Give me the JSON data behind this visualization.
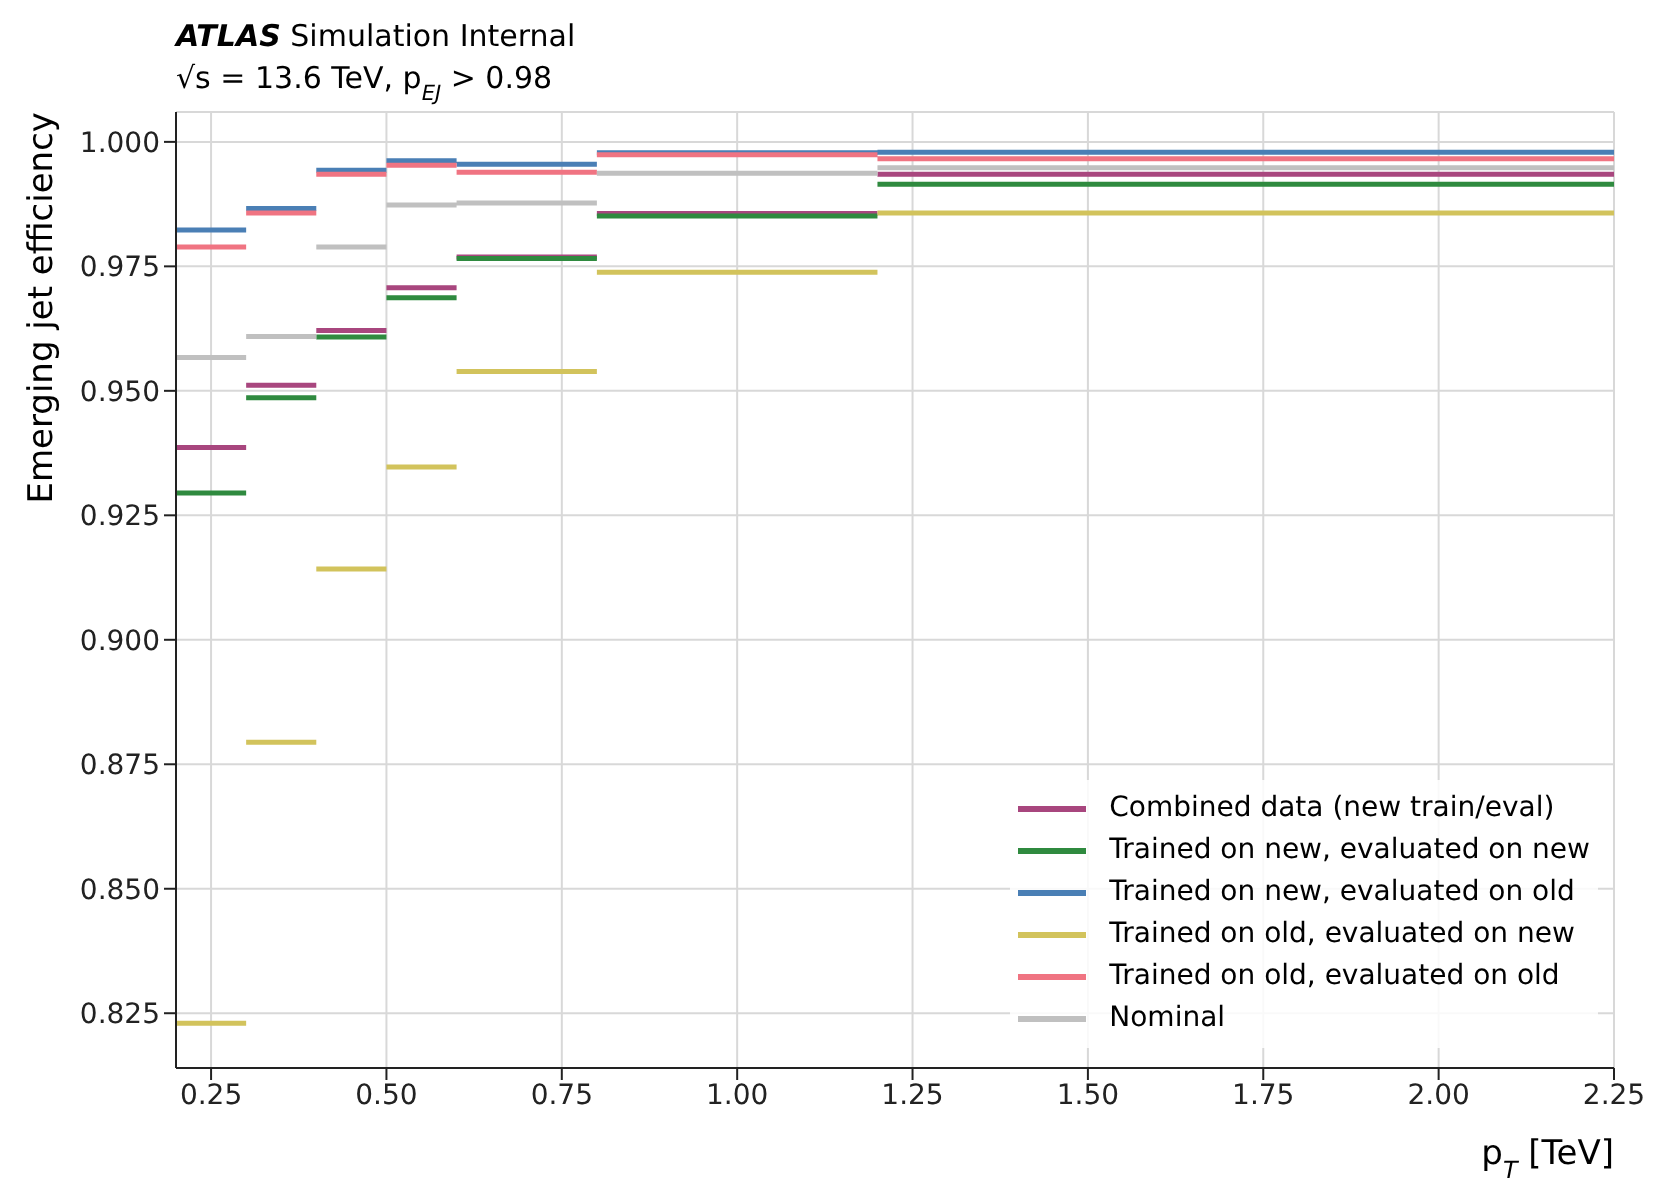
{
  "chart_data": {
    "type": "step",
    "title": "ATLAS Simulation Internal",
    "subtitle": "√s = 13.6 TeV, p$_{EJ}$ > 0.98",
    "xlabel": "p$_{T}$ [TeV]",
    "ylabel": "Emerging jet efficiency",
    "x": [
      0.2,
      0.3,
      0.4,
      0.5,
      0.6,
      0.8,
      1.2,
      2.25
    ],
    "series": [
      {
        "name": "Combined data (new train/eval)",
        "color": "#a8467e",
        "values": [
          0.9386,
          0.9511,
          0.9621,
          0.9707,
          0.9769,
          0.9856,
          0.9935,
          0.9935
        ]
      },
      {
        "name": "Trained on new, evaluated on new",
        "color": "#2f8a3f",
        "values": [
          0.9295,
          0.9486,
          0.9608,
          0.9687,
          0.9766,
          0.9851,
          0.9915,
          0.9915
        ]
      },
      {
        "name": "Trained on new, evaluated on old",
        "color": "#4a7fb5",
        "values": [
          0.9823,
          0.9866,
          0.9943,
          0.9962,
          0.9955,
          0.9978,
          0.9979,
          0.9979
        ]
      },
      {
        "name": "Trained on old, evaluated on new",
        "color": "#d2c35c",
        "values": [
          0.823,
          0.8794,
          0.9142,
          0.9347,
          0.9539,
          0.9738,
          0.9857,
          0.9857
        ]
      },
      {
        "name": "Trained on old, evaluated on old",
        "color": "#f07482",
        "values": [
          0.9789,
          0.9857,
          0.9935,
          0.9953,
          0.9939,
          0.9974,
          0.9966,
          0.9966
        ]
      },
      {
        "name": "Nominal",
        "color": "#c0c0c0",
        "values": [
          0.9567,
          0.9609,
          0.9789,
          0.9873,
          0.9877,
          0.9937,
          0.9948,
          0.9948
        ]
      }
    ],
    "xlim": [
      0.2,
      2.25
    ],
    "ylim": [
      0.814,
      1.006
    ],
    "xticks": [
      0.25,
      {
        "value": 0.5,
        "label": "0.50"
      },
      0.75,
      {
        "value": 1,
        "label": "1.00"
      },
      1.25,
      {
        "value": 1.5,
        "label": "1.50"
      },
      1.75,
      {
        "value": 2,
        "label": "2.00"
      },
      2.25
    ],
    "yticks": [
      0.825,
      {
        "value": 0.85,
        "label": "0.850"
      },
      0.875,
      {
        "value": 0.9,
        "label": "0.900"
      },
      0.925,
      {
        "value": 0.95,
        "label": "0.950"
      },
      0.975,
      {
        "value": 1,
        "label": "1.000"
      }
    ],
    "grid": true,
    "legend": "bottom right"
  }
}
